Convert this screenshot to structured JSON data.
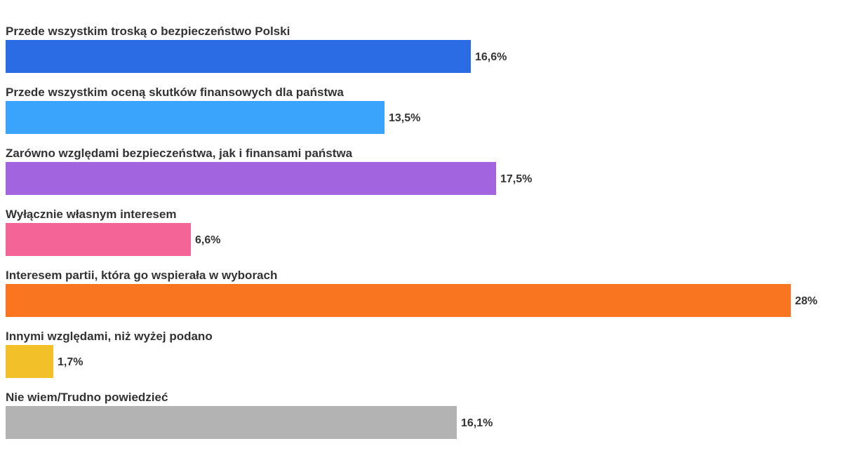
{
  "chart_data": {
    "type": "bar",
    "orientation": "horizontal",
    "categories": [
      "Przede wszystkim troską o bezpieczeństwo Polski",
      "Przede wszystkim oceną skutków finansowych dla państwa",
      "Zarówno względami bezpieczeństwa, jak i finansami państwa",
      "Wyłącznie własnym interesem",
      "Interesem partii, która go wspierała w wyborach",
      "Innymi względami, niż wyżej podano",
      "Nie wiem/Trudno powiedzieć"
    ],
    "values": [
      16.6,
      13.5,
      17.5,
      6.6,
      28,
      1.7,
      16.1
    ],
    "value_labels": [
      "16,6%",
      "13,5%",
      "17,5%",
      "6,6%",
      "28%",
      "1,7%",
      "16,1%"
    ],
    "colors": [
      "#2b6be3",
      "#3aa3fb",
      "#a364df",
      "#f56497",
      "#fa7520",
      "#f2c12a",
      "#b3b3b3"
    ],
    "unit": "%",
    "xlim": [
      0,
      28
    ],
    "grid": false,
    "legend": "none"
  }
}
